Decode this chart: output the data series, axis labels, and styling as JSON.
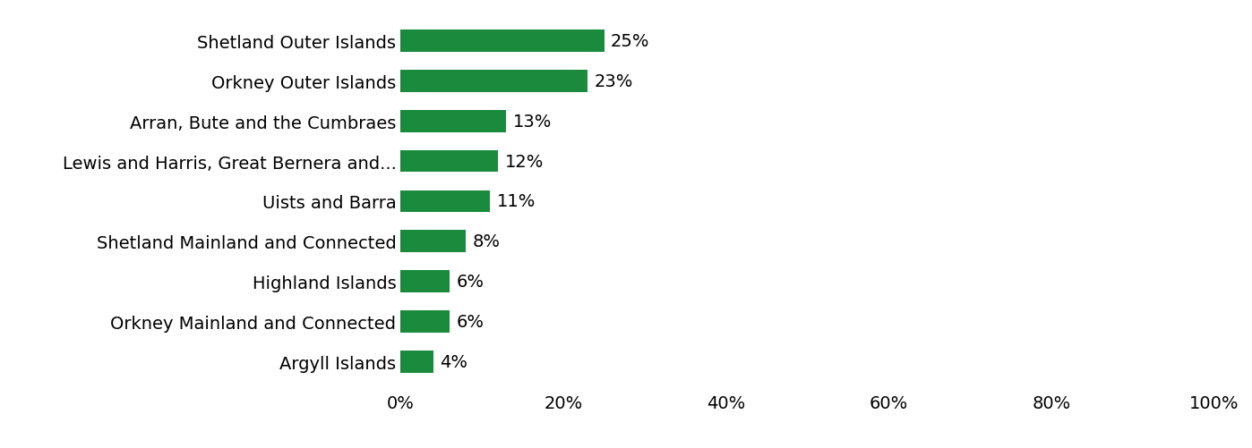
{
  "categories": [
    "Shetland Outer Islands",
    "Orkney Outer Islands",
    "Arran, Bute and the Cumbraes",
    "Lewis and Harris, Great Bernera and...",
    "Uists and Barra",
    "Shetland Mainland and Connected",
    "Highland Islands",
    "Orkney Mainland and Connected",
    "Argyll Islands"
  ],
  "values": [
    25,
    23,
    13,
    12,
    11,
    8,
    6,
    6,
    4
  ],
  "bar_color": "#1a8a3c",
  "background_color": "#ffffff",
  "xlim": [
    0,
    100
  ],
  "xticks": [
    0,
    20,
    40,
    60,
    80,
    100
  ],
  "tick_fontsize": 14,
  "label_fontsize": 14,
  "bar_height": 0.55
}
